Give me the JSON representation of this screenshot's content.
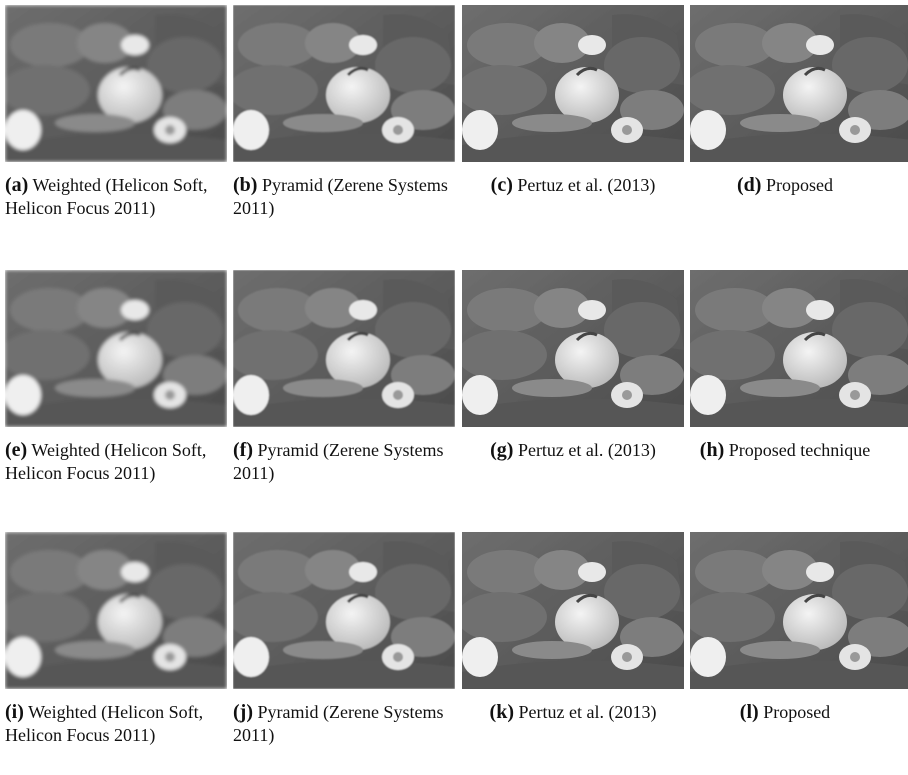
{
  "panels": [
    {
      "label": "(a)",
      "caption": "Weighted (Helicon Soft, Helicon Focus 2011)"
    },
    {
      "label": "(b)",
      "caption": "Pyramid (Zerene Systems 2011)"
    },
    {
      "label": "(c)",
      "caption": "Pertuz et al. (2013)"
    },
    {
      "label": "(d)",
      "caption": "Proposed"
    },
    {
      "label": "(e)",
      "caption": "Weighted (Helicon Soft, Helicon Focus 2011)"
    },
    {
      "label": "(f)",
      "caption": "Pyramid (Zerene Systems 2011)"
    },
    {
      "label": "(g)",
      "caption": "Pertuz et al. (2013)"
    },
    {
      "label": "(h)",
      "caption": "Proposed tech­nique"
    },
    {
      "label": "(i)",
      "caption": "Weighted (Helicon Soft, Helicon Focus 2011)"
    },
    {
      "label": "(j)",
      "caption": "Pyramid (Zerene Systems 2011)"
    },
    {
      "label": "(k)",
      "caption": "Pertuz et al. (2013)"
    },
    {
      "label": "(l)",
      "caption": "Proposed"
    }
  ]
}
